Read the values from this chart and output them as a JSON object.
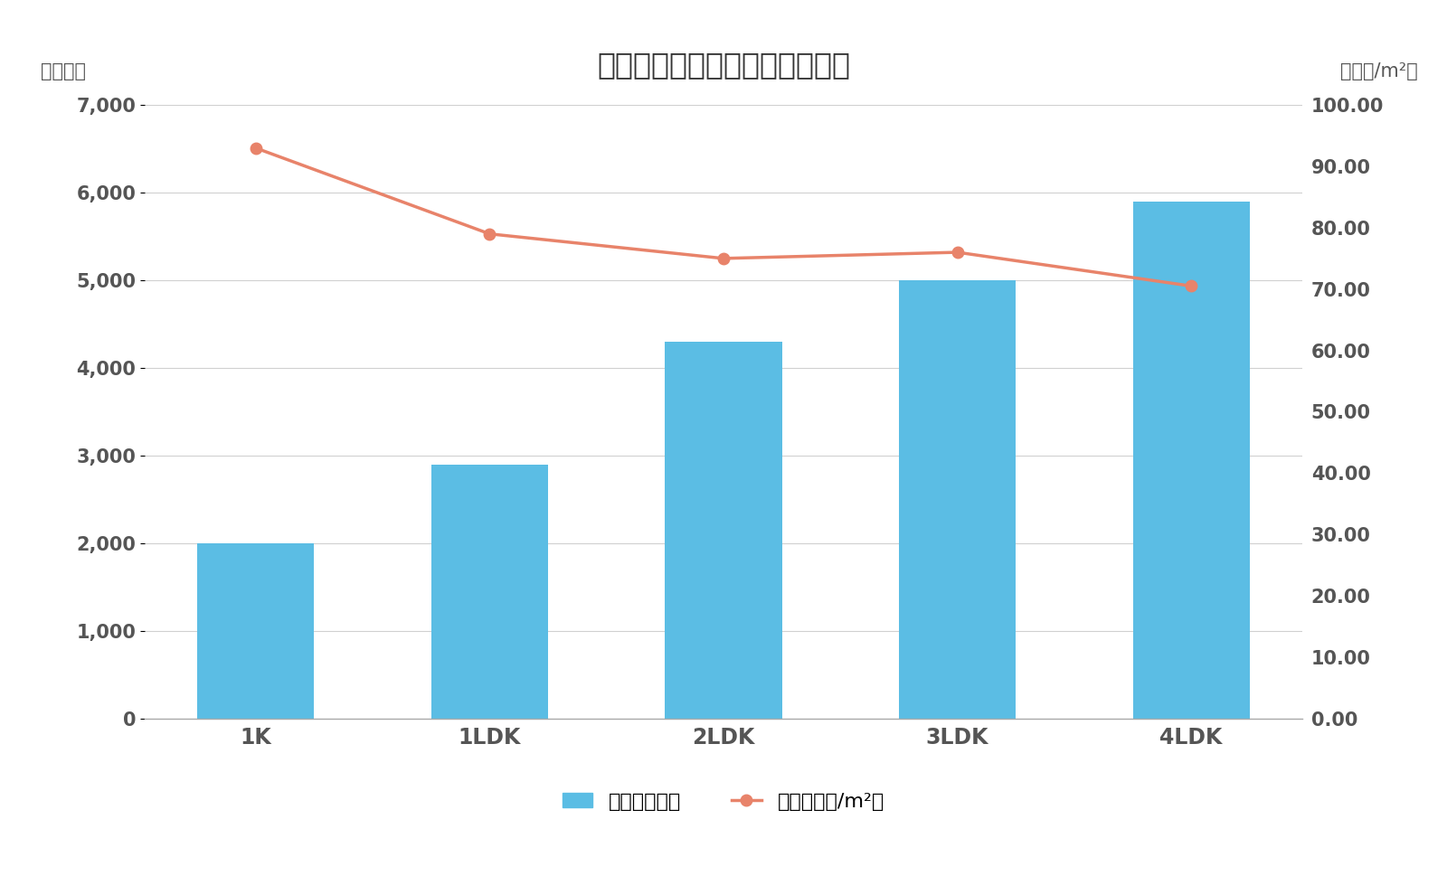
{
  "title": "練馬区間取り別マンション価格",
  "categories": [
    "1K",
    "1LDK",
    "2LDK",
    "3LDK",
    "4LDK"
  ],
  "bar_values": [
    2000,
    2900,
    4300,
    5000,
    5900
  ],
  "line_values": [
    93.0,
    79.0,
    75.0,
    76.0,
    70.5
  ],
  "bar_color": "#5BBDE4",
  "line_color": "#E8836A",
  "left_ylabel": "（万円）",
  "right_ylabel": "（万円/m²）",
  "ylim_left": [
    0,
    7000
  ],
  "ylim_right": [
    0,
    100.0
  ],
  "yticks_left": [
    0,
    1000,
    2000,
    3000,
    4000,
    5000,
    6000,
    7000
  ],
  "yticks_right": [
    0.0,
    10.0,
    20.0,
    30.0,
    40.0,
    50.0,
    60.0,
    70.0,
    80.0,
    90.0,
    100.0
  ],
  "legend_bar_label": "価格（万円）",
  "legend_line_label": "単価（万円/m²）",
  "background_color": "#ffffff",
  "grid_color": "#d0d0d0",
  "title_fontsize": 24,
  "axis_label_fontsize": 15,
  "tick_fontsize": 15,
  "legend_fontsize": 16
}
